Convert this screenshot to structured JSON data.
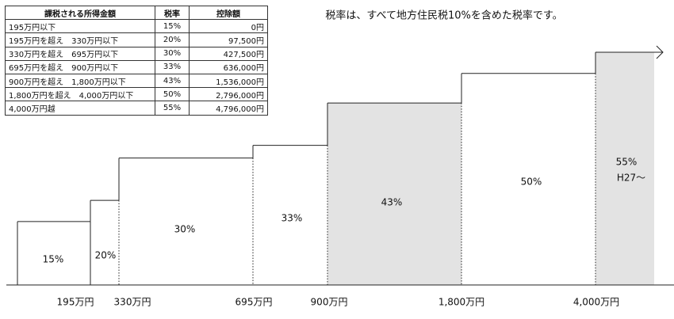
{
  "table": {
    "header": [
      "課税される所得金額",
      "税率",
      "控除額"
    ],
    "rows": [
      [
        "195万円以下",
        "15%",
        "0円"
      ],
      [
        "195万円を超え　330万円以下",
        "20%",
        "97,500円"
      ],
      [
        "330万円を超え　695万円以下",
        "30%",
        "427,500円"
      ],
      [
        "695万円を超え　900万円以下",
        "33%",
        "636,000円"
      ],
      [
        "900万円を超え　1,800万円以下",
        "43%",
        "1,536,000円"
      ],
      [
        "1,800万円を超え　4,000万円以下",
        "50%",
        "2,796,000円"
      ],
      [
        "4,000万円越",
        "55%",
        "4,796,000円"
      ]
    ]
  },
  "chart_data": {
    "type": "step",
    "title": "税率は、すべて地方住民税10%を含めた税率です。",
    "values": [
      15,
      20,
      30,
      33,
      43,
      50,
      55
    ],
    "value_labels": [
      "15%",
      "20%",
      "30%",
      "33%",
      "43%",
      "50%",
      "55%"
    ],
    "colors": [
      "#ffffff",
      "#ffffff",
      "#ffffff",
      "#ffffff",
      "#e3e3e3",
      "#ffffff",
      "#e3e3e3"
    ],
    "boundary_labels": [
      "195万円",
      "330万円",
      "695万円",
      "900万円",
      "1,800万円",
      "4,000万円"
    ],
    "annotation": "H27～",
    "ylim": [
      0,
      55
    ]
  }
}
